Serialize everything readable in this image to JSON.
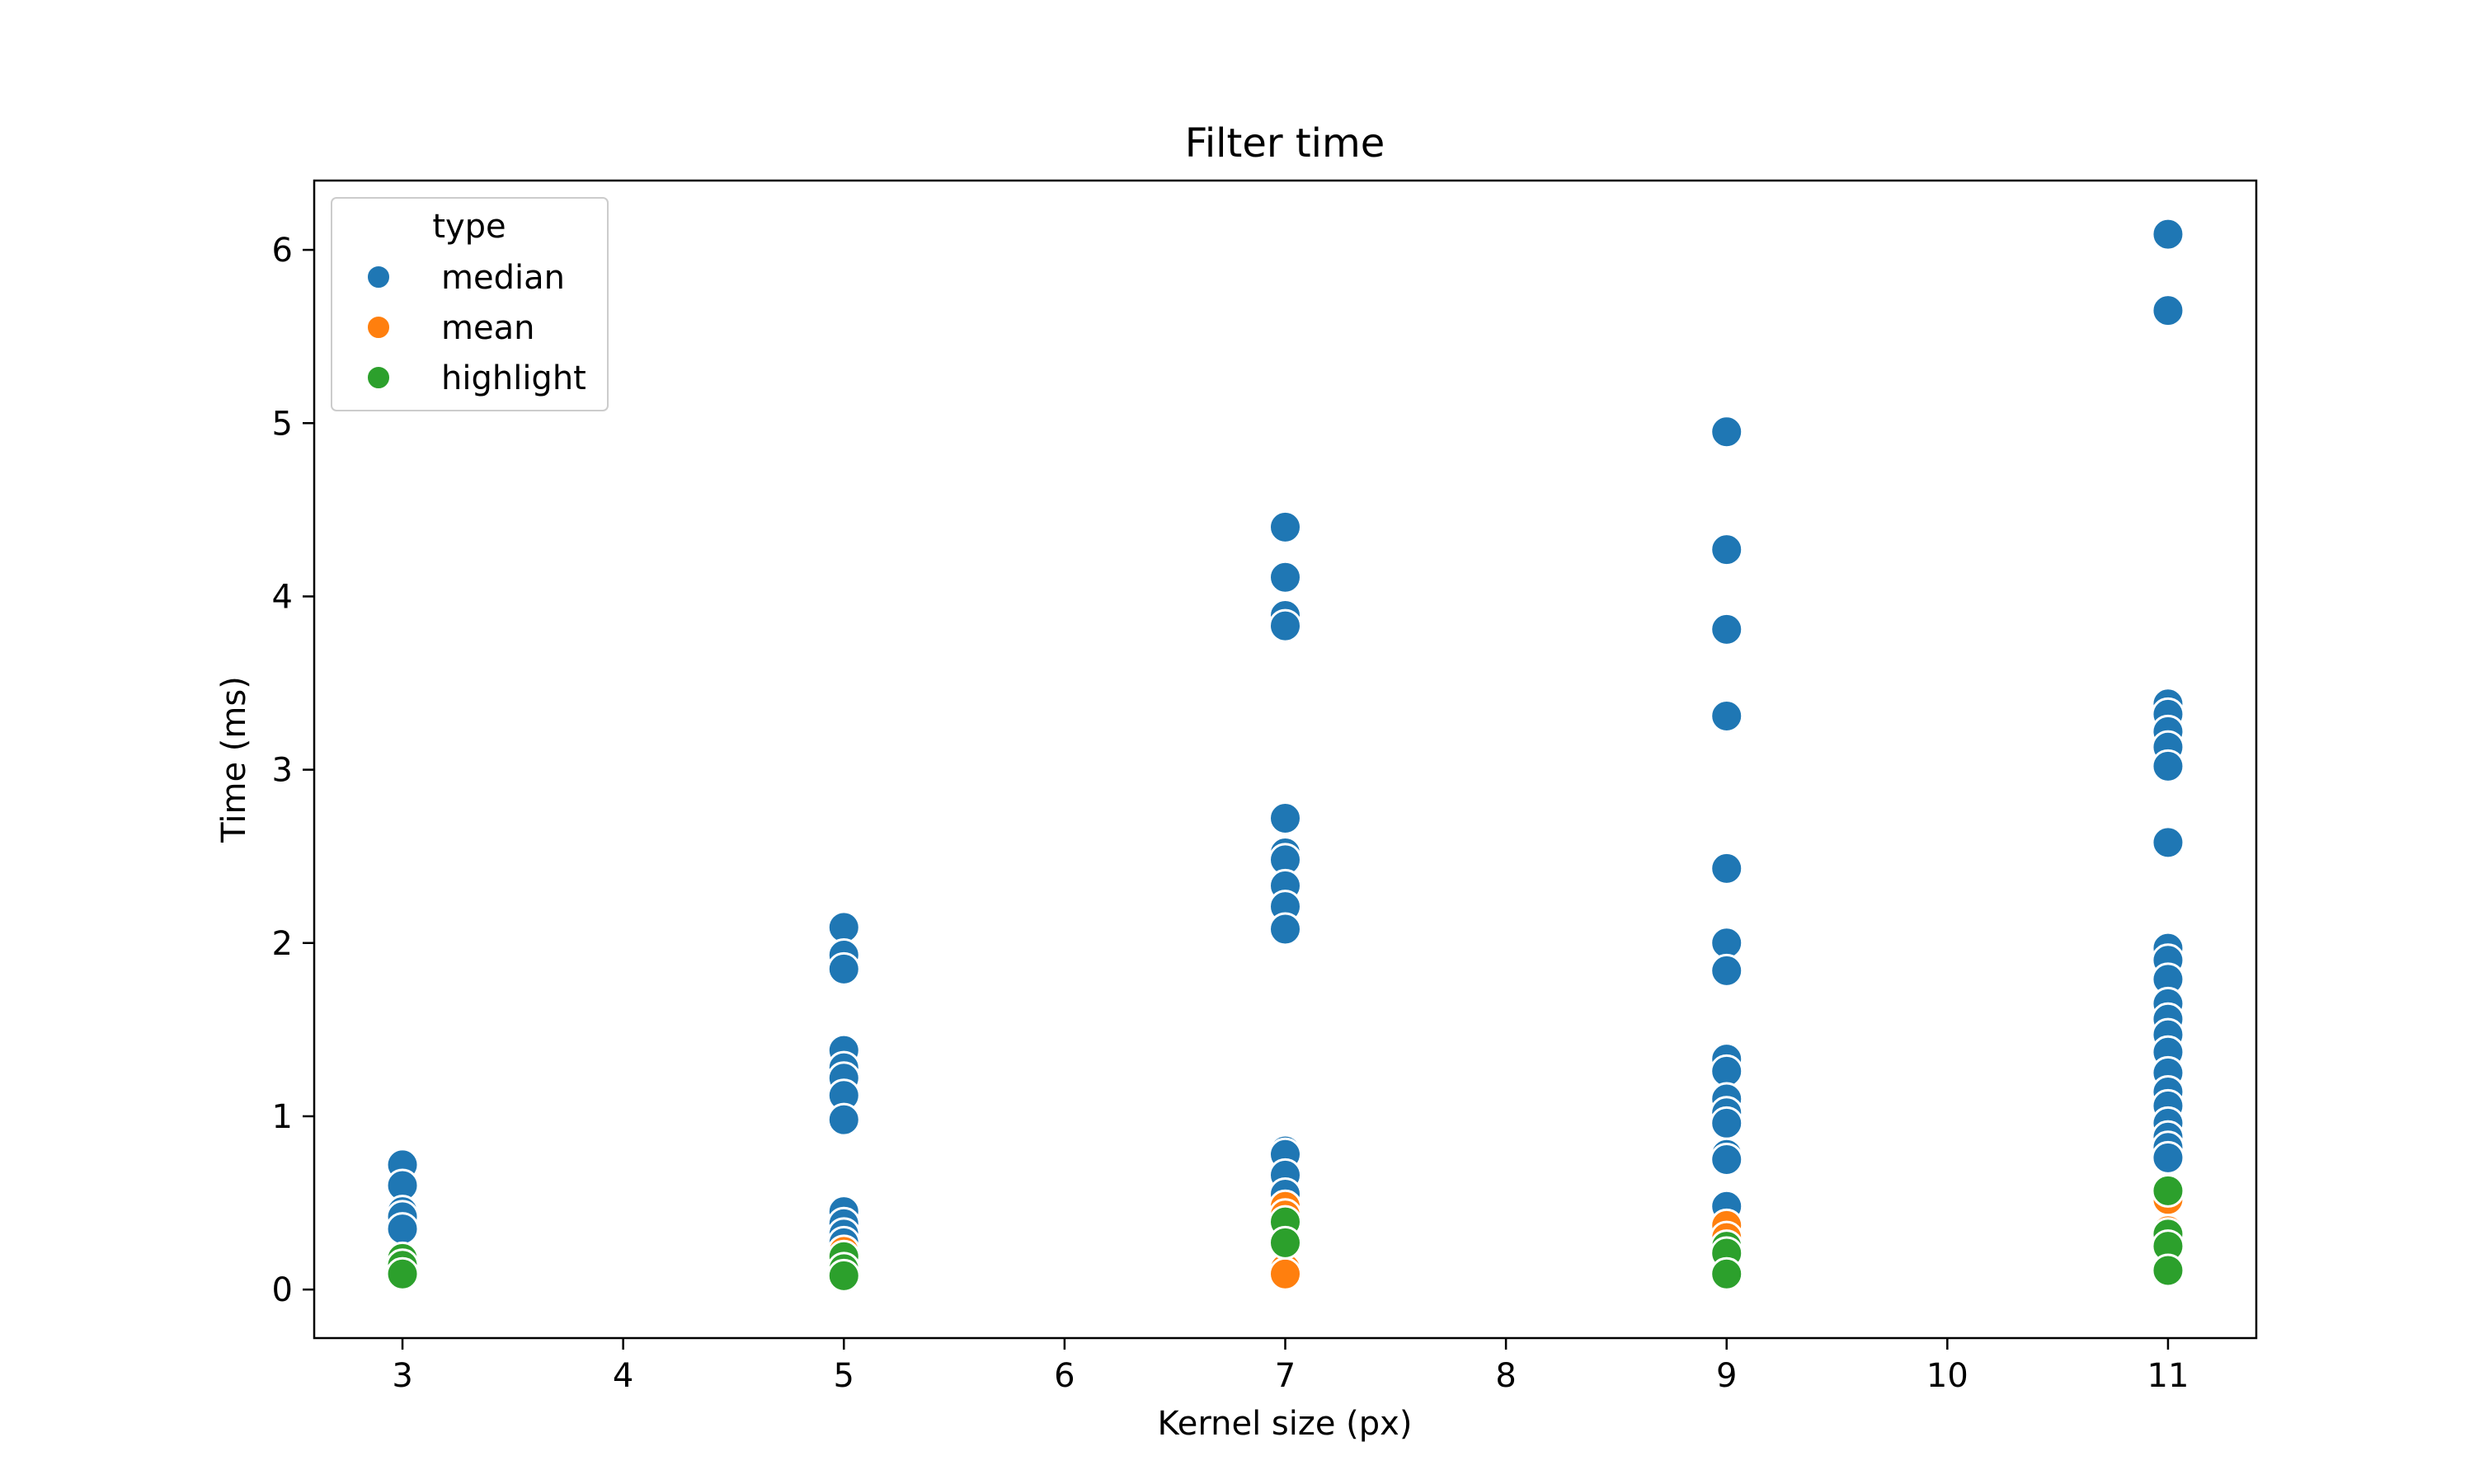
{
  "chart_data": {
    "type": "scatter",
    "title": "Filter time",
    "xlabel": "Kernel size (px)",
    "ylabel": "Time (ms)",
    "xlim": [
      2.6,
      11.4
    ],
    "ylim": [
      -0.28,
      6.4
    ],
    "xticks": [
      3,
      4,
      5,
      6,
      7,
      8,
      9,
      10,
      11
    ],
    "yticks": [
      0,
      1,
      2,
      3,
      4,
      5,
      6
    ],
    "grid": false,
    "legend": {
      "title": "type",
      "placement": "top-left"
    },
    "series": [
      {
        "name": "median",
        "color": "#1f77b4",
        "points": [
          {
            "x": 3,
            "y": 0.72
          },
          {
            "x": 3,
            "y": 0.6
          },
          {
            "x": 3,
            "y": 0.45
          },
          {
            "x": 3,
            "y": 0.42
          },
          {
            "x": 3,
            "y": 0.35
          },
          {
            "x": 5,
            "y": 2.09
          },
          {
            "x": 5,
            "y": 1.93
          },
          {
            "x": 5,
            "y": 1.85
          },
          {
            "x": 5,
            "y": 1.38
          },
          {
            "x": 5,
            "y": 1.28
          },
          {
            "x": 5,
            "y": 1.22
          },
          {
            "x": 5,
            "y": 1.12
          },
          {
            "x": 5,
            "y": 0.98
          },
          {
            "x": 5,
            "y": 0.45
          },
          {
            "x": 5,
            "y": 0.38
          },
          {
            "x": 5,
            "y": 0.32
          },
          {
            "x": 5,
            "y": 0.27
          },
          {
            "x": 7,
            "y": 4.4
          },
          {
            "x": 7,
            "y": 4.11
          },
          {
            "x": 7,
            "y": 3.89
          },
          {
            "x": 7,
            "y": 3.83
          },
          {
            "x": 7,
            "y": 2.72
          },
          {
            "x": 7,
            "y": 2.52
          },
          {
            "x": 7,
            "y": 2.48
          },
          {
            "x": 7,
            "y": 2.33
          },
          {
            "x": 7,
            "y": 2.21
          },
          {
            "x": 7,
            "y": 2.08
          },
          {
            "x": 7,
            "y": 0.8
          },
          {
            "x": 7,
            "y": 0.78
          },
          {
            "x": 7,
            "y": 0.66
          },
          {
            "x": 7,
            "y": 0.55
          },
          {
            "x": 9,
            "y": 4.95
          },
          {
            "x": 9,
            "y": 4.27
          },
          {
            "x": 9,
            "y": 3.81
          },
          {
            "x": 9,
            "y": 3.31
          },
          {
            "x": 9,
            "y": 2.43
          },
          {
            "x": 9,
            "y": 2.0
          },
          {
            "x": 9,
            "y": 1.84
          },
          {
            "x": 9,
            "y": 1.33
          },
          {
            "x": 9,
            "y": 1.26
          },
          {
            "x": 9,
            "y": 1.1
          },
          {
            "x": 9,
            "y": 1.02
          },
          {
            "x": 9,
            "y": 0.96
          },
          {
            "x": 9,
            "y": 0.78
          },
          {
            "x": 9,
            "y": 0.75
          },
          {
            "x": 9,
            "y": 0.48
          },
          {
            "x": 11,
            "y": 6.09
          },
          {
            "x": 11,
            "y": 5.65
          },
          {
            "x": 11,
            "y": 3.38
          },
          {
            "x": 11,
            "y": 3.32
          },
          {
            "x": 11,
            "y": 3.22
          },
          {
            "x": 11,
            "y": 3.13
          },
          {
            "x": 11,
            "y": 3.02
          },
          {
            "x": 11,
            "y": 2.58
          },
          {
            "x": 11,
            "y": 1.97
          },
          {
            "x": 11,
            "y": 1.9
          },
          {
            "x": 11,
            "y": 1.79
          },
          {
            "x": 11,
            "y": 1.65
          },
          {
            "x": 11,
            "y": 1.56
          },
          {
            "x": 11,
            "y": 1.47
          },
          {
            "x": 11,
            "y": 1.37
          },
          {
            "x": 11,
            "y": 1.25
          },
          {
            "x": 11,
            "y": 1.14
          },
          {
            "x": 11,
            "y": 1.06
          },
          {
            "x": 11,
            "y": 0.96
          },
          {
            "x": 11,
            "y": 0.88
          },
          {
            "x": 11,
            "y": 0.82
          },
          {
            "x": 11,
            "y": 0.76
          }
        ]
      },
      {
        "name": "mean",
        "color": "#ff7f0e",
        "points": [
          {
            "x": 3,
            "y": 0.15
          },
          {
            "x": 3,
            "y": 0.1
          },
          {
            "x": 5,
            "y": 0.22
          },
          {
            "x": 5,
            "y": 0.15
          },
          {
            "x": 7,
            "y": 0.48
          },
          {
            "x": 7,
            "y": 0.43
          },
          {
            "x": 7,
            "y": 0.12
          },
          {
            "x": 7,
            "y": 0.09
          },
          {
            "x": 9,
            "y": 0.37
          },
          {
            "x": 9,
            "y": 0.3
          },
          {
            "x": 11,
            "y": 0.52
          },
          {
            "x": 11,
            "y": 0.34
          }
        ]
      },
      {
        "name": "highlight",
        "color": "#2ca02c",
        "points": [
          {
            "x": 3,
            "y": 0.18
          },
          {
            "x": 3,
            "y": 0.14
          },
          {
            "x": 3,
            "y": 0.09
          },
          {
            "x": 5,
            "y": 0.19
          },
          {
            "x": 5,
            "y": 0.12
          },
          {
            "x": 5,
            "y": 0.08
          },
          {
            "x": 7,
            "y": 0.39
          },
          {
            "x": 7,
            "y": 0.27
          },
          {
            "x": 9,
            "y": 0.25
          },
          {
            "x": 9,
            "y": 0.21
          },
          {
            "x": 9,
            "y": 0.09
          },
          {
            "x": 11,
            "y": 0.57
          },
          {
            "x": 11,
            "y": 0.32
          },
          {
            "x": 11,
            "y": 0.25
          },
          {
            "x": 11,
            "y": 0.11
          }
        ]
      }
    ]
  }
}
